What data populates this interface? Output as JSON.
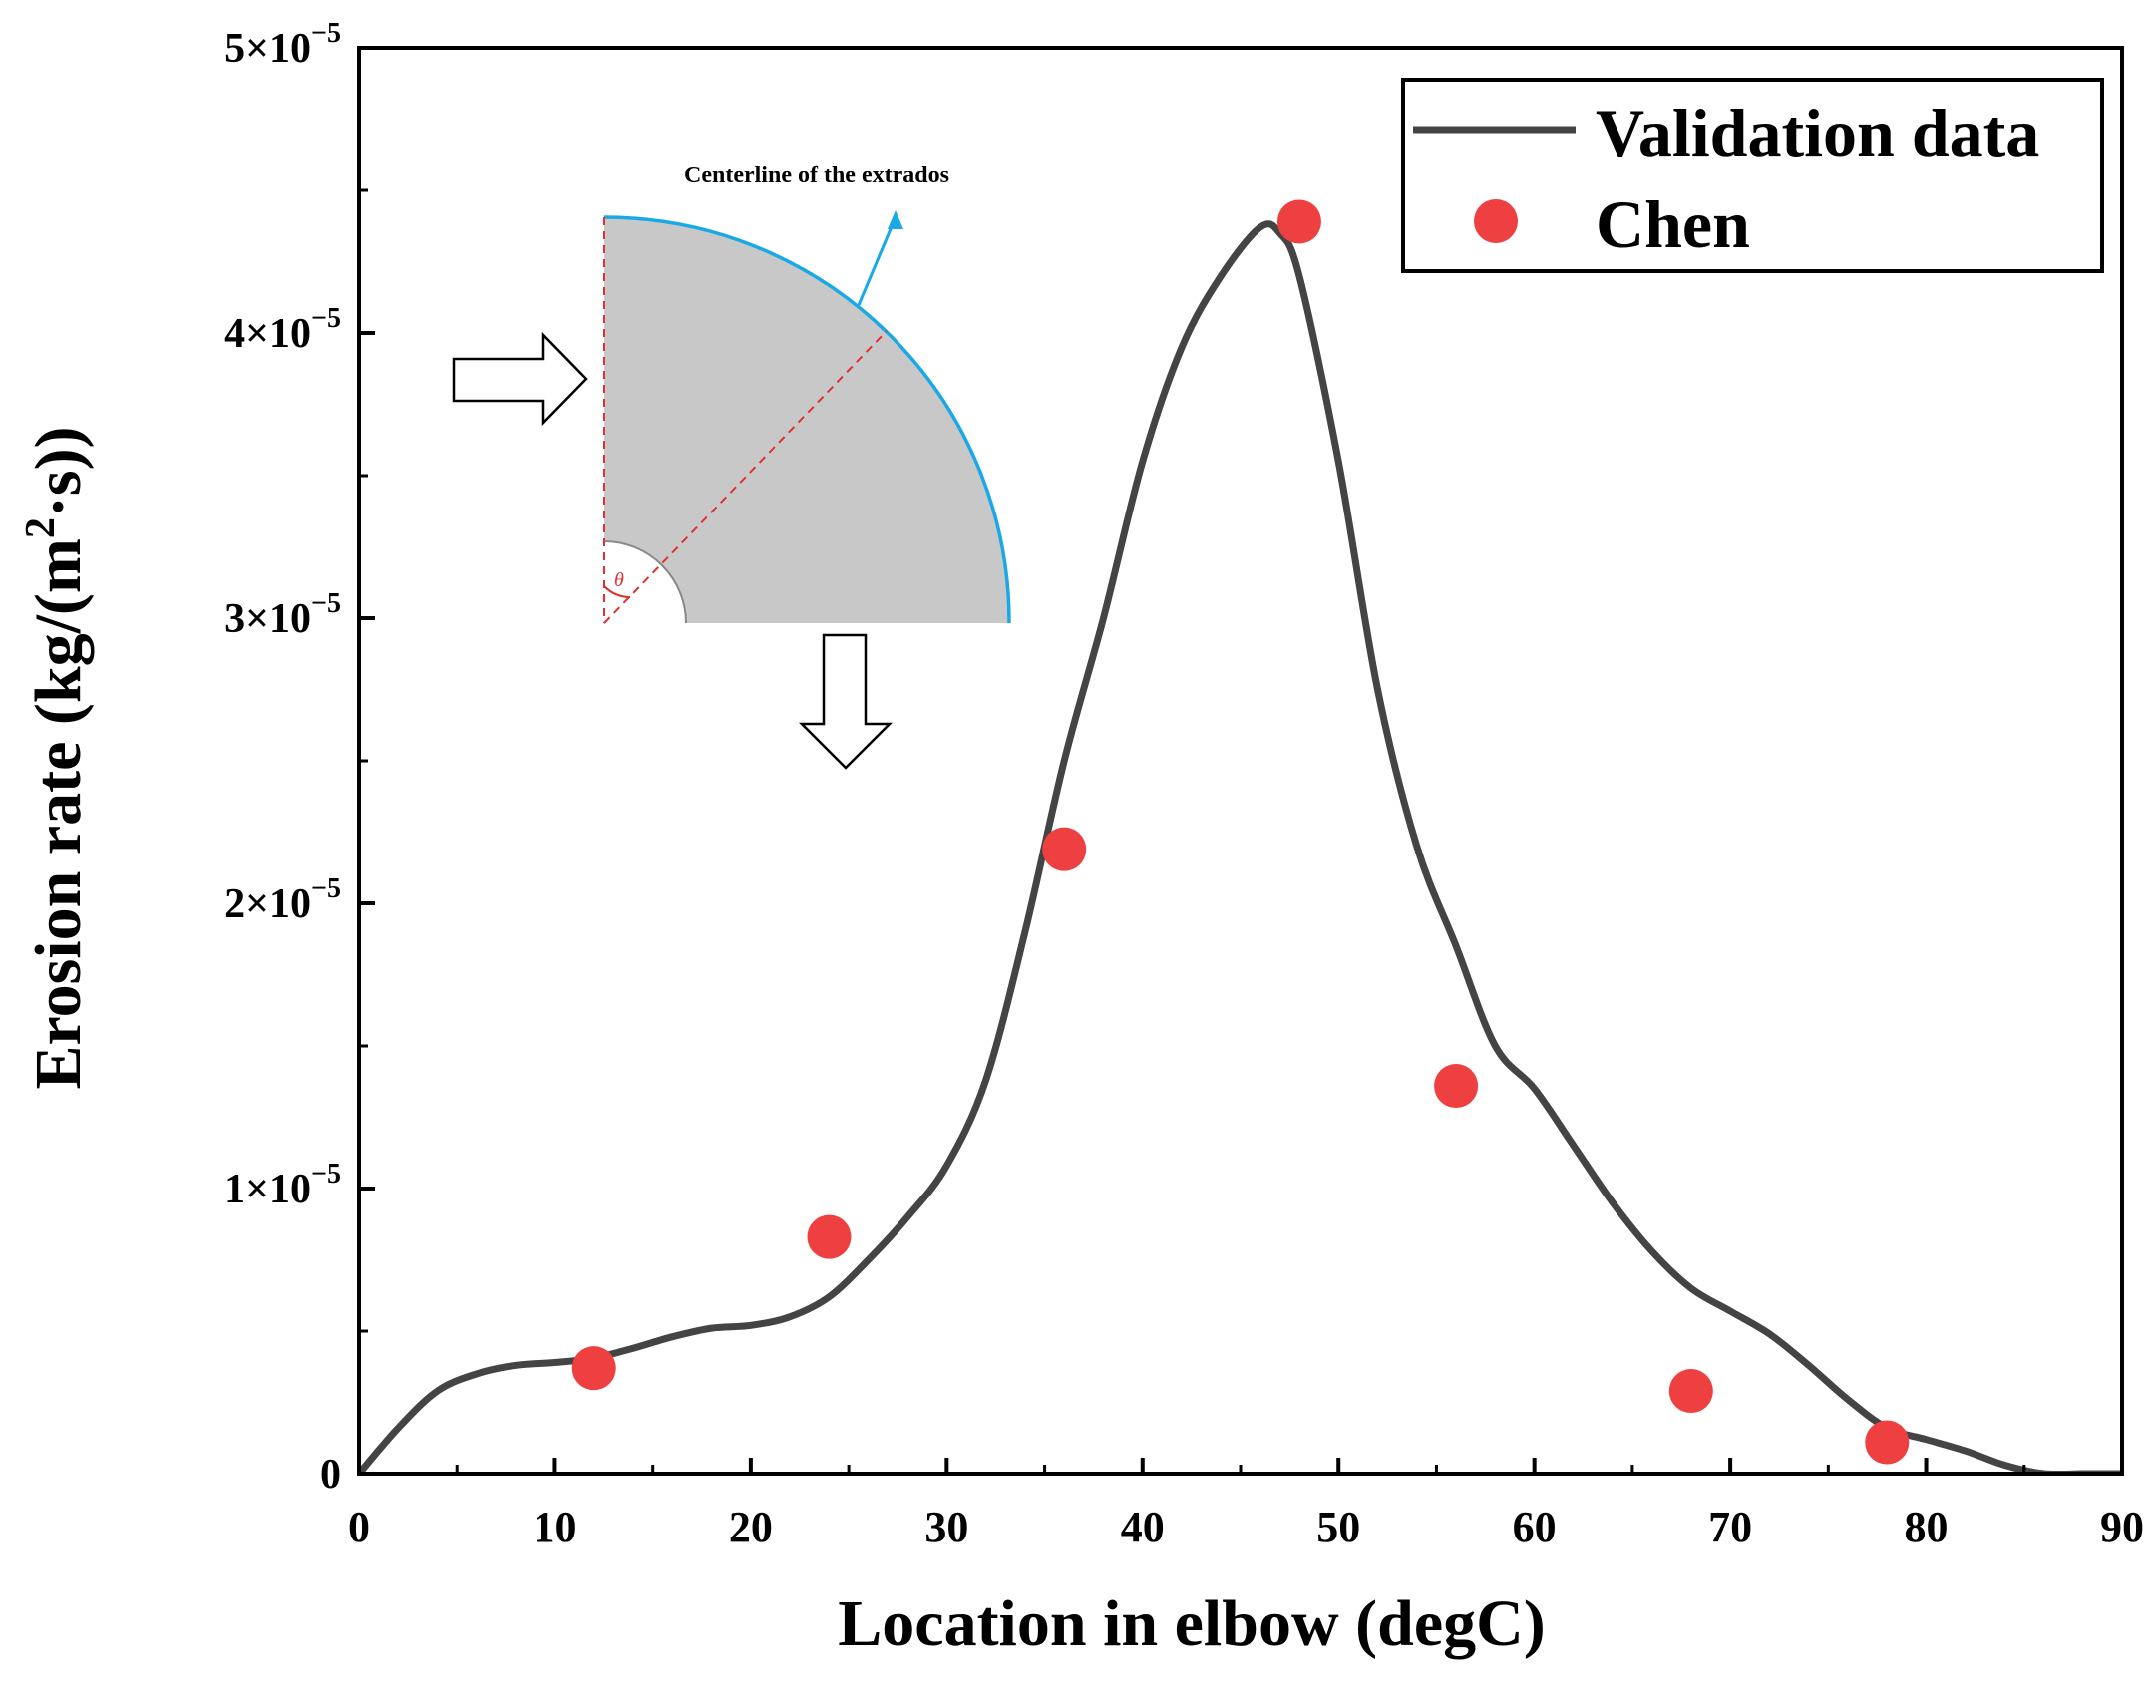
{
  "chart_data": {
    "type": "line",
    "xlabel": "Location in elbow (degC)",
    "ylabel_main": "Erosion rate (kg/(m",
    "ylabel_sup": "2",
    "ylabel_tail": "·s))",
    "xlim": [
      0,
      90
    ],
    "ylim": [
      0,
      5e-05
    ],
    "x_ticks": [
      0,
      10,
      20,
      30,
      40,
      50,
      60,
      70,
      80,
      90
    ],
    "x_tick_labels": [
      "0",
      "10",
      "20",
      "30",
      "40",
      "50",
      "60",
      "70",
      "80",
      "90"
    ],
    "y_ticks": [
      0,
      1e-05,
      2e-05,
      3e-05,
      4e-05,
      5e-05
    ],
    "y_tick_labels": [
      {
        "base": "0",
        "exp": ""
      },
      {
        "base": "1×10",
        "exp": "−5"
      },
      {
        "base": "2×10",
        "exp": "−5"
      },
      {
        "base": "3×10",
        "exp": "−5"
      },
      {
        "base": "4×10",
        "exp": "−5"
      },
      {
        "base": "5×10",
        "exp": "−5"
      }
    ],
    "grid": false,
    "legend_position": "top-right",
    "series": [
      {
        "name": "Validation data",
        "style": "line",
        "color": "#444444",
        "x": [
          0,
          2,
          4,
          6,
          8,
          10,
          12,
          14,
          16,
          18,
          20,
          22,
          24,
          26,
          28,
          30,
          32,
          34,
          36,
          38,
          40,
          42,
          44,
          46,
          47,
          48,
          50,
          52,
          54,
          56,
          58,
          60,
          62,
          64,
          66,
          68,
          70,
          72,
          74,
          76,
          78,
          80,
          82,
          84,
          86,
          88,
          90
        ],
        "y": [
          0,
          1.6e-06,
          2.9e-06,
          3.5e-06,
          3.8e-06,
          3.9e-06,
          4.05e-06,
          4.4e-06,
          4.8e-06,
          5.1e-06,
          5.2e-06,
          5.5e-06,
          6.2e-06,
          7.5e-06,
          9e-06,
          1.08e-05,
          1.38e-05,
          1.9e-05,
          2.5e-05,
          3e-05,
          3.55e-05,
          3.95e-05,
          4.2e-05,
          4.37e-05,
          4.35e-05,
          4.2e-05,
          3.55e-05,
          2.75e-05,
          2.2e-05,
          1.85e-05,
          1.5e-05,
          1.35e-05,
          1.15e-05,
          9.5e-06,
          7.8e-06,
          6.5e-06,
          5.7e-06,
          4.9e-06,
          3.8e-06,
          2.6e-06,
          1.6e-06,
          1.2e-06,
          8e-07,
          3e-07,
          0,
          0,
          0
        ]
      },
      {
        "name": "Chen",
        "style": "scatter",
        "color": "#ee4040",
        "x": [
          12,
          24,
          36,
          48,
          56,
          68,
          78
        ],
        "y": [
          3.7e-06,
          8.3e-06,
          2.19e-05,
          4.39e-05,
          1.36e-05,
          2.9e-06,
          1.1e-06
        ]
      }
    ]
  },
  "inset": {
    "label": "Centerline of the extrados",
    "theta_symbol": "θ"
  }
}
